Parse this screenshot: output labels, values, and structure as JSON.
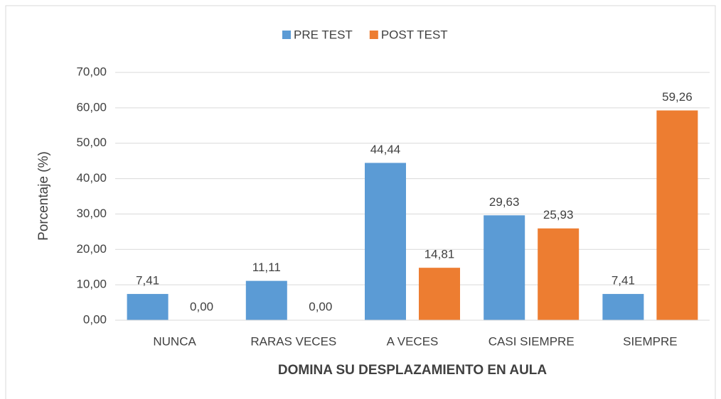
{
  "chart_data": {
    "type": "bar",
    "x_label": "DOMINA SU DESPLAZAMIENTO EN AULA",
    "y_label": "Porcentaje (%)",
    "categories": [
      "NUNCA",
      "RARAS VECES",
      "A VECES",
      "CASI SIEMPRE",
      "SIEMPRE"
    ],
    "series": [
      {
        "name": "PRE TEST",
        "color": "#5b9bd5",
        "values": [
          7.41,
          11.11,
          44.44,
          29.63,
          7.41
        ],
        "value_labels": [
          "7,41",
          "11,11",
          "44,44",
          "29,63",
          "7,41"
        ]
      },
      {
        "name": "POST TEST",
        "color": "#ed7d31",
        "values": [
          0,
          0,
          14.81,
          25.93,
          59.26
        ],
        "value_labels": [
          "0,00",
          "0,00",
          "14,81",
          "25,93",
          "59,26"
        ]
      }
    ],
    "ylim": [
      0,
      70
    ],
    "yticks": [
      {
        "value": 0,
        "label": "0,00"
      },
      {
        "value": 10,
        "label": "10,00"
      },
      {
        "value": 20,
        "label": "20,00"
      },
      {
        "value": 30,
        "label": "30,00"
      },
      {
        "value": 40,
        "label": "40,00"
      },
      {
        "value": 50,
        "label": "50,00"
      },
      {
        "value": 60,
        "label": "60,00"
      },
      {
        "value": 70,
        "label": "70,00"
      }
    ],
    "grid": true,
    "legend": "top"
  }
}
